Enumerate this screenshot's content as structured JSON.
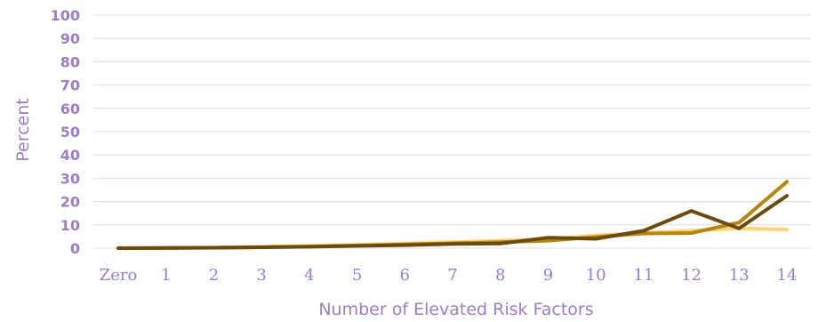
{
  "chart_data": {
    "type": "line",
    "title": "",
    "xlabel": "Number of Elevated Risk Factors",
    "ylabel": "Percent",
    "categories": [
      "Zero",
      "1",
      "2",
      "3",
      "4",
      "5",
      "6",
      "7",
      "8",
      "9",
      "10",
      "11",
      "12",
      "13",
      "14"
    ],
    "yticks": [
      0,
      10,
      20,
      30,
      40,
      50,
      60,
      70,
      80,
      90,
      100
    ],
    "ylim": [
      0,
      100
    ],
    "grid": true,
    "legend": "none",
    "series": [
      {
        "color": "#ffd36e",
        "values": [
          0,
          0,
          0.3,
          0.6,
          1,
          1.5,
          2,
          2.6,
          3.2,
          3.8,
          5.5,
          6.5,
          7.5,
          8.5,
          8
        ]
      },
      {
        "color": "#b8860b",
        "values": [
          0,
          0.1,
          0.2,
          0.4,
          0.7,
          1.1,
          1.6,
          2.1,
          2.6,
          3.2,
          4.8,
          6.3,
          6.5,
          11,
          28.5
        ]
      },
      {
        "color": "#6b4a0c",
        "values": [
          0,
          0.1,
          0.2,
          0.4,
          0.6,
          1,
          1.3,
          1.8,
          2,
          4.5,
          4,
          7.5,
          16,
          8.5,
          22.5
        ]
      }
    ]
  }
}
